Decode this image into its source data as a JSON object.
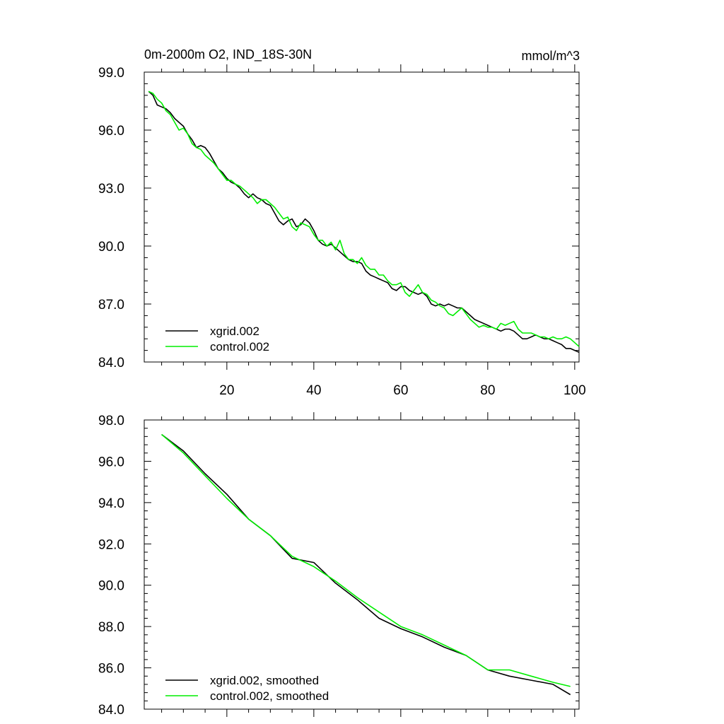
{
  "chart_data": [
    {
      "type": "line",
      "title": "0m-2000m O2, IND_18S-30N",
      "units": "mmol/m^3",
      "xlabel": "",
      "ylabel": "",
      "xlim": [
        1,
        101
      ],
      "ylim": [
        84.0,
        99.0
      ],
      "x_ticks": [
        20,
        40,
        60,
        80,
        100
      ],
      "x_tick_labels": [
        "20",
        "40",
        "60",
        "80",
        "100"
      ],
      "y_ticks": [
        84.0,
        87.0,
        90.0,
        93.0,
        96.0,
        99.0
      ],
      "y_tick_labels": [
        "84.0",
        "87.0",
        "90.0",
        "93.0",
        "96.0",
        "99.0"
      ],
      "grid": false,
      "legend_position": "bottom-left",
      "x": [
        2,
        3,
        4,
        5,
        6,
        7,
        8,
        9,
        10,
        11,
        12,
        13,
        14,
        15,
        16,
        17,
        18,
        19,
        20,
        21,
        22,
        23,
        24,
        25,
        26,
        27,
        28,
        29,
        30,
        31,
        32,
        33,
        34,
        35,
        36,
        37,
        38,
        39,
        40,
        41,
        42,
        43,
        44,
        45,
        46,
        47,
        48,
        49,
        50,
        51,
        52,
        53,
        54,
        55,
        56,
        57,
        58,
        59,
        60,
        61,
        62,
        63,
        64,
        65,
        66,
        67,
        68,
        69,
        70,
        71,
        72,
        73,
        74,
        75,
        76,
        77,
        78,
        79,
        80,
        81,
        82,
        83,
        84,
        85,
        86,
        87,
        88,
        89,
        90,
        91,
        92,
        93,
        94,
        95,
        96,
        97,
        98,
        99,
        100,
        101
      ],
      "series": [
        {
          "name": "xgrid.002",
          "color": "#000000",
          "values": [
            98.0,
            97.8,
            97.3,
            97.2,
            97.1,
            96.9,
            96.6,
            96.4,
            96.2,
            95.8,
            95.5,
            95.1,
            95.2,
            95.1,
            94.8,
            94.4,
            94.0,
            93.8,
            93.5,
            93.3,
            93.2,
            93.0,
            92.7,
            92.5,
            92.7,
            92.5,
            92.4,
            92.2,
            92.1,
            91.7,
            91.3,
            91.1,
            91.3,
            91.4,
            91.0,
            91.1,
            91.4,
            91.2,
            90.8,
            90.3,
            90.1,
            90.0,
            90.1,
            89.9,
            89.7,
            89.5,
            89.3,
            89.2,
            89.2,
            89.1,
            88.7,
            88.5,
            88.4,
            88.3,
            88.2,
            88.1,
            87.8,
            87.7,
            87.9,
            87.9,
            87.7,
            87.6,
            87.5,
            87.6,
            87.4,
            87.0,
            86.9,
            87.0,
            86.9,
            87.0,
            86.9,
            86.8,
            86.8,
            86.6,
            86.4,
            86.2,
            86.1,
            86.0,
            85.9,
            85.8,
            85.7,
            85.6,
            85.7,
            85.7,
            85.6,
            85.4,
            85.2,
            85.2,
            85.3,
            85.4,
            85.3,
            85.2,
            85.2,
            85.1,
            85.0,
            84.9,
            84.7,
            84.7,
            84.6,
            84.5
          ]
        },
        {
          "name": "control.002",
          "color": "#00ee00",
          "values": [
            98.0,
            97.9,
            97.6,
            97.4,
            97.0,
            96.8,
            96.4,
            96.0,
            96.1,
            95.8,
            95.3,
            95.1,
            95.0,
            94.7,
            94.5,
            94.3,
            94.0,
            93.7,
            93.4,
            93.4,
            93.2,
            93.1,
            92.9,
            92.7,
            92.5,
            92.2,
            92.4,
            92.4,
            92.2,
            92.0,
            91.7,
            91.4,
            91.5,
            91.0,
            90.8,
            91.2,
            91.1,
            91.0,
            90.6,
            90.3,
            90.3,
            90.0,
            90.2,
            89.8,
            90.3,
            89.6,
            89.3,
            89.3,
            89.1,
            89.4,
            89.0,
            88.8,
            88.8,
            88.5,
            88.5,
            88.2,
            88.0,
            88.0,
            88.1,
            87.6,
            87.4,
            87.7,
            88.0,
            87.6,
            87.5,
            87.2,
            87.1,
            86.9,
            86.8,
            86.5,
            86.4,
            86.6,
            86.8,
            86.5,
            86.2,
            86.0,
            85.8,
            85.9,
            85.8,
            85.8,
            85.7,
            86.0,
            85.9,
            86.0,
            86.1,
            85.7,
            85.5,
            85.5,
            85.5,
            85.4,
            85.3,
            85.3,
            85.2,
            85.3,
            85.2,
            85.2,
            85.3,
            85.2,
            85.0,
            84.8
          ]
        }
      ]
    },
    {
      "type": "line",
      "title": "",
      "xlabel": "",
      "ylabel": "",
      "xlim": [
        1,
        101
      ],
      "ylim": [
        84.0,
        98.0
      ],
      "x_ticks": [
        20,
        40,
        60,
        80,
        100
      ],
      "x_tick_labels": [],
      "y_ticks": [
        84.0,
        86.0,
        88.0,
        90.0,
        92.0,
        94.0,
        96.0,
        98.0
      ],
      "y_tick_labels": [
        "84.0",
        "86.0",
        "88.0",
        "90.0",
        "92.0",
        "94.0",
        "96.0",
        "98.0"
      ],
      "grid": false,
      "legend_position": "bottom-left",
      "x": [
        5,
        10,
        15,
        20,
        25,
        30,
        35,
        40,
        45,
        50,
        55,
        60,
        65,
        70,
        75,
        80,
        85,
        90,
        95,
        99
      ],
      "series": [
        {
          "name": "xgrid.002, smoothed",
          "color": "#000000",
          "values": [
            97.3,
            96.5,
            95.4,
            94.4,
            93.2,
            92.4,
            91.3,
            91.1,
            90.1,
            89.3,
            88.4,
            87.9,
            87.5,
            87.0,
            86.6,
            85.9,
            85.6,
            85.4,
            85.2,
            84.7
          ]
        },
        {
          "name": "control.002, smoothed",
          "color": "#00ee00",
          "values": [
            97.3,
            96.4,
            95.3,
            94.2,
            93.2,
            92.4,
            91.4,
            90.9,
            90.2,
            89.4,
            88.7,
            88.0,
            87.6,
            87.1,
            86.6,
            85.9,
            85.9,
            85.6,
            85.3,
            85.1
          ]
        }
      ]
    }
  ]
}
